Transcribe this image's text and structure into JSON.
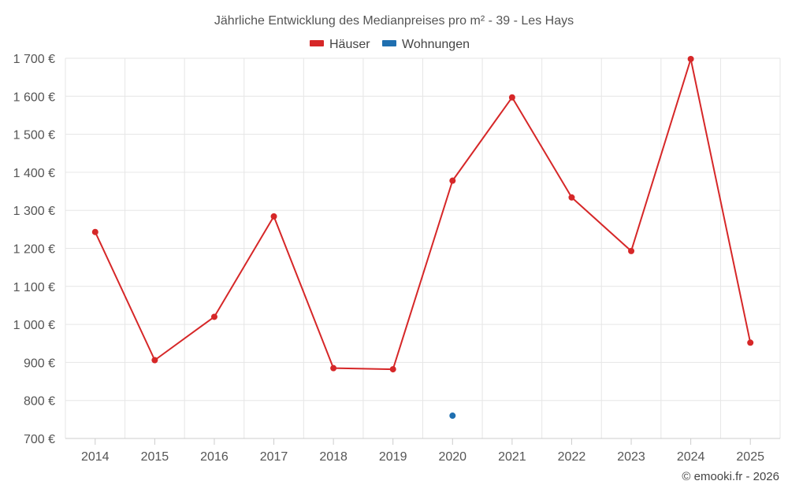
{
  "credit": "© emooki.fr - 2026",
  "chart_data": {
    "type": "line",
    "title": "Jährliche Entwicklung des Medianpreises pro m² - 39 - Les Hays",
    "xlabel": "",
    "ylabel": "",
    "categories": [
      "2014",
      "2015",
      "2016",
      "2017",
      "2018",
      "2019",
      "2020",
      "2021",
      "2022",
      "2023",
      "2024",
      "2025"
    ],
    "ylim": [
      700,
      1700
    ],
    "yticks": [
      700,
      800,
      900,
      1000,
      1100,
      1200,
      1300,
      1400,
      1500,
      1600,
      1700
    ],
    "ytick_labels": [
      "700 €",
      "800 €",
      "900 €",
      "1 000 €",
      "1 100 €",
      "1 200 €",
      "1 300 €",
      "1 400 €",
      "1 500 €",
      "1 600 €",
      "1 700 €"
    ],
    "grid": true,
    "legend_position": "top-center",
    "series": [
      {
        "name": "Häuser",
        "color": "#d62728",
        "values": [
          1243,
          906,
          1020,
          1284,
          885,
          882,
          1378,
          1597,
          1334,
          1193,
          1698,
          952
        ]
      },
      {
        "name": "Wohnungen",
        "color": "#1f6fb0",
        "values": [
          null,
          null,
          null,
          null,
          null,
          null,
          760,
          null,
          null,
          null,
          null,
          null
        ]
      }
    ]
  }
}
